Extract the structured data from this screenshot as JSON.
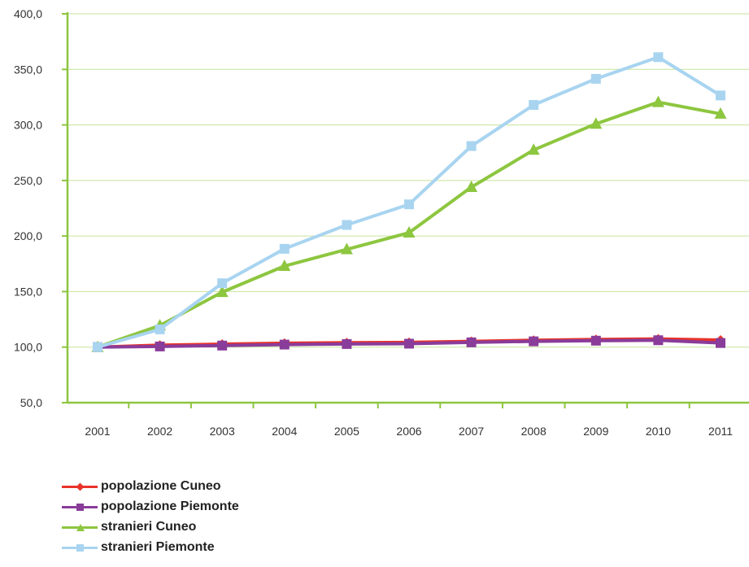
{
  "chart_data": {
    "type": "line",
    "title": "",
    "xlabel": "",
    "ylabel": "",
    "ylim": [
      50,
      400
    ],
    "ytick_step": 50,
    "y_tick_labels": [
      "50,0",
      "100,0",
      "150,0",
      "200,0",
      "250,0",
      "300,0",
      "350,0",
      "400,0"
    ],
    "categories": [
      "2001",
      "2002",
      "2003",
      "2004",
      "2005",
      "2006",
      "2007",
      "2008",
      "2009",
      "2010",
      "2011"
    ],
    "grid": "horizontal",
    "legend_position": "bottom-left",
    "series": [
      {
        "name": "popolazione Cuneo",
        "color": "#e8332a",
        "marker": "diamond",
        "values": [
          100.0,
          101.8,
          102.7,
          103.5,
          104.0,
          104.3,
          105.2,
          106.2,
          106.9,
          107.4,
          106.4
        ]
      },
      {
        "name": "popolazione Piemonte",
        "color": "#8a3c9a",
        "marker": "square",
        "values": [
          100.0,
          100.6,
          101.4,
          102.3,
          102.8,
          103.1,
          104.3,
          105.2,
          105.8,
          106.2,
          103.7
        ]
      },
      {
        "name": "stranieri Cuneo",
        "color": "#8dc63f",
        "marker": "triangle",
        "values": [
          100.0,
          119.5,
          149.5,
          173.0,
          188.0,
          203.0,
          244.0,
          277.5,
          301.0,
          320.5,
          310.0
        ]
      },
      {
        "name": "stranieri Piemonte",
        "color": "#a8d4f0",
        "marker": "square",
        "values": [
          100.0,
          116.0,
          157.5,
          188.5,
          210.0,
          228.5,
          281.0,
          318.0,
          341.5,
          361.0,
          326.5
        ]
      }
    ]
  }
}
